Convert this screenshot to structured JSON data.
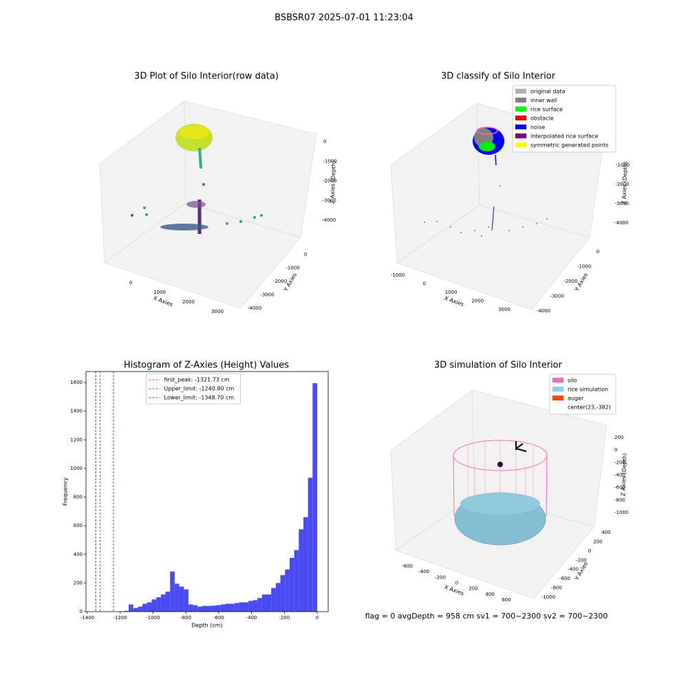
{
  "suptitle": "BSBSR07 2025-07-01 11:23:04",
  "footer": "flag = 0     avgDepth = 958 cm  sv1 = 700~2300  sv2 = 700~2300",
  "chart_data": [
    {
      "type": "scatter3d",
      "title": "3D Plot of Silo Interior(row data)",
      "xlabel": "X Axies",
      "ylabel": "Y Axies",
      "zlabel": "Z Axies (Depth)",
      "xticks": [
        0,
        1000,
        2000,
        3000
      ],
      "yticks": [
        0,
        -1000,
        -2000,
        -3000,
        -4000
      ],
      "zticks": [
        0,
        -1000,
        -2000,
        -3000,
        -4000
      ]
    },
    {
      "type": "scatter3d",
      "title": "3D classify of Silo Interior",
      "xlabel": "X Axies",
      "ylabel": "Y Axies",
      "zlabel": "Z Axies (Depth)",
      "xticks": [
        -1000,
        0,
        1000,
        2000,
        3000
      ],
      "yticks": [
        0,
        -1000,
        -2000,
        -3000,
        -4000
      ],
      "zticks": [
        -1000,
        -2000,
        -3000,
        -4000
      ],
      "legend": [
        {
          "name": "original data",
          "color": "#b0b0b0"
        },
        {
          "name": "inner wall",
          "color": "#808080"
        },
        {
          "name": "rice surface",
          "color": "#00ff00"
        },
        {
          "name": "obstacle",
          "color": "#ff0000"
        },
        {
          "name": "noise",
          "color": "#0000ff"
        },
        {
          "name": "interpolated rice surface",
          "color": "#800080"
        },
        {
          "name": "symmetric generated points",
          "color": "#ffff00"
        }
      ]
    },
    {
      "type": "histogram",
      "title": "Histogram of Z-Axies (Height) Values",
      "xlabel": "Depth (cm)",
      "ylabel": "Frequency",
      "color": "#4b4bf5",
      "bins": [
        -1176,
        -1148,
        -1120,
        -1092,
        -1064,
        -1036,
        -1008,
        -980,
        -952,
        -924,
        -896,
        -868,
        -840,
        -812,
        -784,
        -756,
        -728,
        -700,
        -672,
        -644,
        -616,
        -588,
        -560,
        -532,
        -504,
        -476,
        -448,
        -420,
        -392,
        -364,
        -336,
        -308,
        -280,
        -252,
        -224,
        -196,
        -168,
        -140,
        -112,
        -84,
        -56,
        -28,
        0
      ],
      "values": [
        5,
        50,
        25,
        35,
        55,
        65,
        85,
        100,
        120,
        140,
        280,
        195,
        175,
        155,
        50,
        45,
        35,
        40,
        40,
        42,
        45,
        50,
        55,
        55,
        60,
        65,
        65,
        75,
        80,
        95,
        120,
        120,
        165,
        200,
        255,
        295,
        375,
        430,
        575,
        660,
        935,
        1595
      ],
      "xlim": [
        -1408,
        67
      ],
      "ylim": [
        0,
        1677
      ],
      "xticks": [
        -1400,
        -1200,
        -1000,
        -800,
        -600,
        -400,
        -200,
        0
      ],
      "yticks": [
        0,
        200,
        400,
        600,
        800,
        1000,
        1200,
        1400,
        1600
      ],
      "vlines": [
        {
          "name": "first_peak: -1321.73 cm",
          "value": -1321.73,
          "color": "#ff0000"
        },
        {
          "name": "Upper_limit: -1240.80 cm",
          "value": -1240.8,
          "color": "#800080"
        },
        {
          "name": "Lower_limit: -1348.70 cm",
          "value": -1348.7,
          "color": "#0000ff"
        }
      ],
      "legend_position": "upper center"
    },
    {
      "type": "surface3d",
      "title": "3D simulation of Silo Interior",
      "xlabel": "X Axies",
      "ylabel": "Y Axies",
      "zlabel": "Z Axies (Depth)",
      "xticks": [
        -600,
        -400,
        -200,
        0,
        200,
        400,
        600
      ],
      "yticks": [
        400,
        200,
        0,
        -200,
        -400,
        -600,
        -800,
        -1000
      ],
      "zticks": [
        200,
        0,
        -200,
        -400,
        -600,
        -800,
        -1000
      ],
      "legend": [
        {
          "name": "silo",
          "color": "#ff69b4"
        },
        {
          "name": "rice simulation",
          "color": "#87ceeb"
        },
        {
          "name": "auger",
          "color": "#ff4500"
        },
        {
          "name": "center(23,-382)"
        }
      ]
    }
  ]
}
